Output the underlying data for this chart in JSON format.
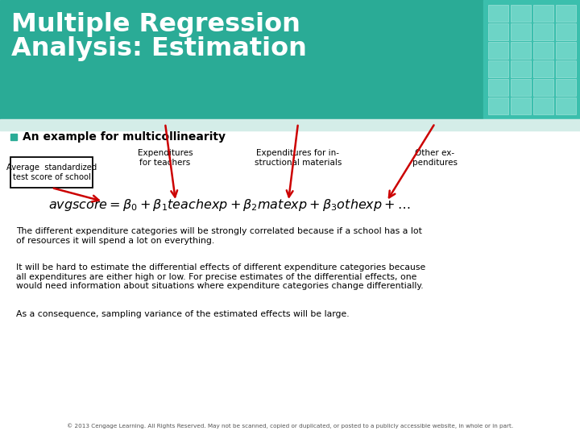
{
  "title_line1": "Multiple Regression",
  "title_line2": "Analysis: Estimation",
  "title_bg_color": "#2aab96",
  "title_text_color": "#ffffff",
  "header_stripe_color": "#d4ede8",
  "bg_color": "#ffffff",
  "bullet_color": "#2aab96",
  "bullet_text": "An example for multicollinearity",
  "box_label": "Average  standardized\ntest score of school",
  "arrow_color": "#cc0000",
  "label1": "Expenditures\nfor teachers",
  "label2": "Expenditures for in-\nstructional materials",
  "label3": "Other ex-\npenditures",
  "equation": "$avgscore = \\beta_0+\\beta_1teachexp+\\beta_2matexp+\\beta_3othexp+\\ldots$",
  "para1": "The different expenditure categories will be strongly correlated because if a school has a lot\nof resources it will spend a lot on everything.",
  "para2": "It will be hard to estimate the differential effects of different expenditure categories because\nall expenditures are either high or low. For precise estimates of the differential effects, one\nwould need information about situations where expenditure categories change differentially.",
  "para3": "As a consequence, sampling variance of the estimated effects will be large.",
  "footer": "© 2013 Cengage Learning. All Rights Reserved. May not be scanned, copied or duplicated, or posted to a publicly accessible website, in whole or in part.",
  "key_bg_color": "#3bbfad",
  "key_cell_color": "#6dd4c6",
  "key_edge_color": "#90ddd3"
}
